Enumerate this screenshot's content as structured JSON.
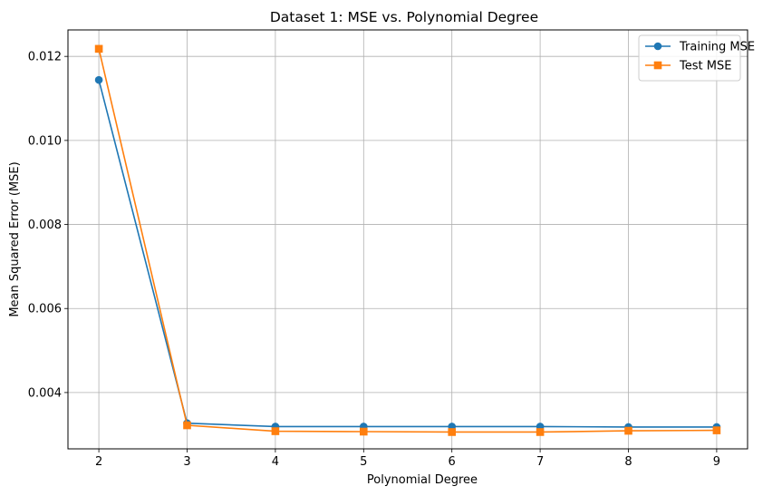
{
  "chart_data": {
    "type": "line",
    "title": "Dataset 1: MSE vs. Polynomial Degree",
    "xlabel": "Polynomial Degree",
    "ylabel": "Mean Squared Error (MSE)",
    "x": [
      2,
      3,
      4,
      5,
      6,
      7,
      8,
      9
    ],
    "xlim": [
      1.65,
      9.35
    ],
    "ylim": [
      0.00266,
      0.01263
    ],
    "xticks": [
      2,
      3,
      4,
      5,
      6,
      7,
      8,
      9
    ],
    "yticks": [
      0.004,
      0.006,
      0.008,
      0.01,
      0.012
    ],
    "ytick_labels": [
      "0.004",
      "0.006",
      "0.008",
      "0.010",
      "0.012"
    ],
    "xtick_labels": [
      "2",
      "3",
      "4",
      "5",
      "6",
      "7",
      "8",
      "9"
    ],
    "grid": true,
    "legend_position": "top-right",
    "series": [
      {
        "name": "Training MSE",
        "color": "#1f77b4",
        "marker": "circle",
        "values": [
          0.01144,
          0.00327,
          0.00319,
          0.00319,
          0.00319,
          0.00319,
          0.00318,
          0.00318
        ]
      },
      {
        "name": "Test MSE",
        "color": "#ff7f0e",
        "marker": "square",
        "values": [
          0.01218,
          0.00322,
          0.00308,
          0.00307,
          0.00306,
          0.00306,
          0.00309,
          0.0031
        ]
      }
    ]
  }
}
